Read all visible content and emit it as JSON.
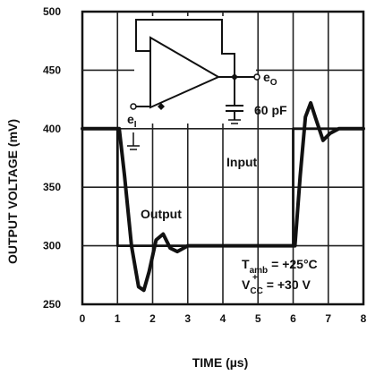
{
  "chart_data": {
    "type": "line",
    "xlabel": "TIME (µs)",
    "ylabel": "OUTPUT VOLTAGE (mV)",
    "xlim": [
      0,
      8
    ],
    "ylim": [
      250,
      500
    ],
    "x_ticks": [
      "0",
      "1",
      "2",
      "3",
      "4",
      "5",
      "6",
      "7",
      "8"
    ],
    "y_ticks": [
      "500",
      "450",
      "400",
      "350",
      "300",
      "250"
    ],
    "grid": true,
    "series": [
      {
        "name": "Input",
        "x": [
          0,
          1.0,
          1.0,
          6.0,
          6.0,
          8
        ],
        "y": [
          400,
          400,
          300,
          300,
          400,
          400
        ]
      },
      {
        "name": "Output",
        "x": [
          0,
          1.05,
          1.2,
          1.4,
          1.6,
          1.75,
          1.9,
          2.1,
          2.3,
          2.5,
          2.7,
          3.0,
          3.3,
          6.05,
          6.2,
          6.35,
          6.5,
          6.65,
          6.85,
          7.05,
          7.3,
          8
        ],
        "y": [
          400,
          400,
          360,
          300,
          265,
          262,
          278,
          305,
          310,
          298,
          295,
          300,
          300,
          300,
          360,
          410,
          422,
          408,
          390,
          396,
          400,
          400
        ]
      }
    ],
    "annotations": {
      "output_label": "Output",
      "input_label": "Input",
      "cap_label": "60 pF",
      "e_o": "e",
      "e_o_sub": "O",
      "e_i": "e",
      "e_i_sub": "I",
      "t_amb": "T",
      "t_amb_sub": "amb",
      "t_amb_value": "= +25°C",
      "vcc": "V",
      "vcc_sub": "CC",
      "vcc_sup": "+",
      "vcc_value": "= +30 V"
    }
  }
}
